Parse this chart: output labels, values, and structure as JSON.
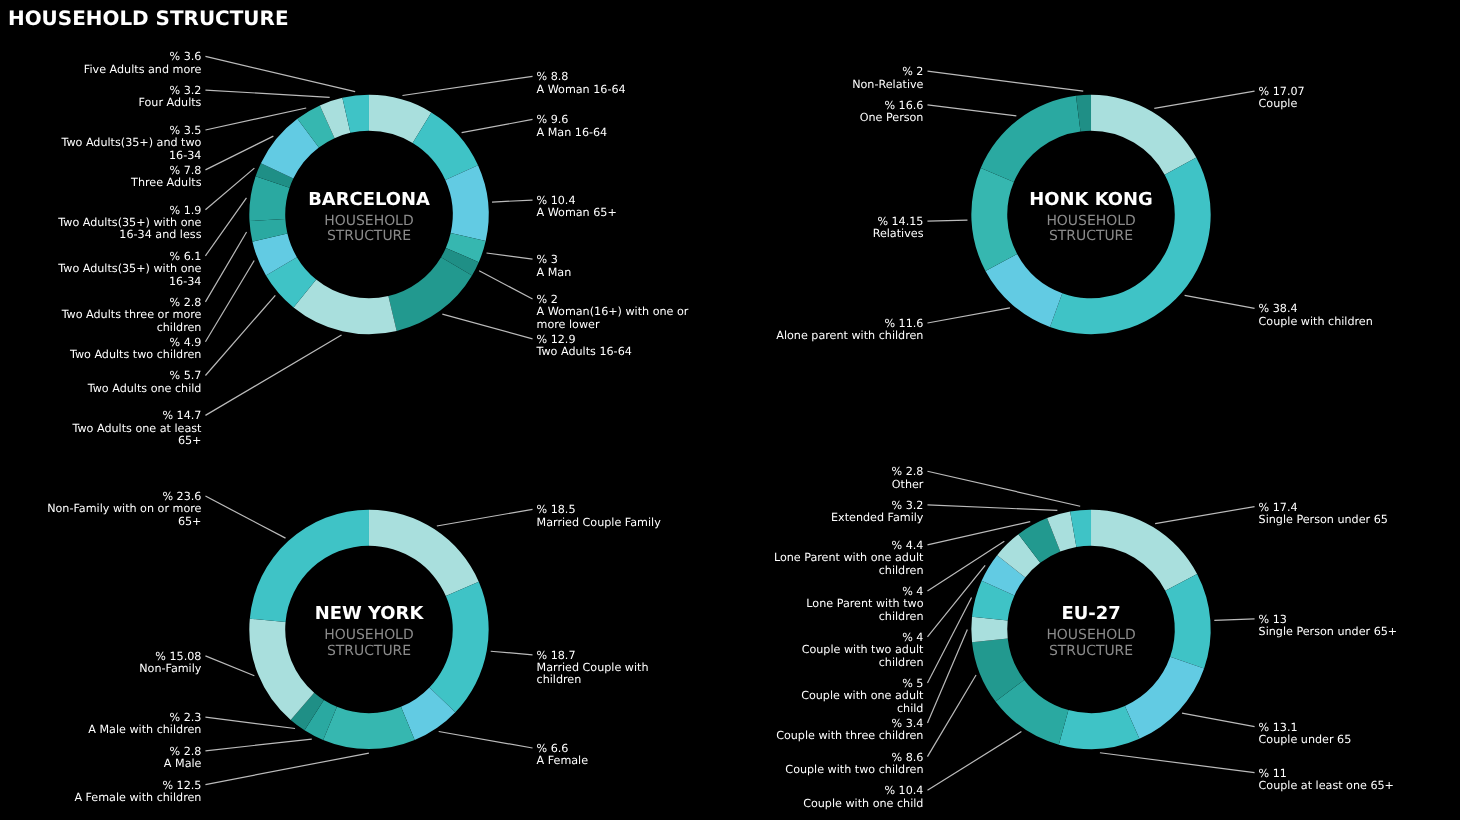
{
  "chart_data": [
    {
      "type": "donut",
      "title": "BARCELONA",
      "subtitle": "HOUSEHOLD STRUCTURE",
      "annotations": [
        "HOUSEHOLD STRUCTURE"
      ],
      "categories": [
        "A Woman 16-64",
        "A Man 16-64",
        "A Woman 65+",
        "A Man",
        "A Woman(16+) with one or more lower",
        "Two Adults 16-64",
        "Two Adults one at least 65+",
        "Two Adults one child",
        "Two Adults two children",
        "Two Adults three or more children",
        "Two Adults(35+) with one 16-34",
        "Two Adults(35+) with one 16-34 and less",
        "Three Adults",
        "Two Adults(35+) and two 16-34",
        "Four Adults",
        "Five Adults and more"
      ],
      "values": [
        8.8,
        9.6,
        10.4,
        3,
        2,
        12.9,
        14.7,
        5.7,
        4.9,
        2.8,
        6.1,
        1.9,
        7.8,
        3.5,
        3.2,
        3.6
      ],
      "value_labels": [
        "% 8.8",
        "% 9.6",
        "% 10.4",
        "% 3",
        "% 2",
        "% 12.9",
        "% 14.7",
        "% 5.7",
        "% 4.9",
        "% 2.8",
        "% 6.1",
        "% 1.9",
        "% 7.8",
        "% 3.5",
        "% 3.2",
        "% 3.6"
      ],
      "colors": [
        "#a9dfdd",
        "#3fc3c6",
        "#62cbe3",
        "#36b7b0",
        "#1f8f86",
        "#22998f",
        "#a9dfdd",
        "#3fc3c6",
        "#62cbe3",
        "#2aa9a1",
        "#2aa9a1",
        "#1f8f86",
        "#62cbe3",
        "#36b7b0",
        "#a9dfdd",
        "#3fc3c6"
      ]
    },
    {
      "type": "donut",
      "title": "HONK KONG",
      "subtitle": "HOUSEHOLD STRUCTURE",
      "categories": [
        "Couple",
        "Couple with children",
        "Alone parent with children",
        "Relatives",
        "One Person",
        "Non-Relative"
      ],
      "values": [
        17.07,
        38.4,
        11.6,
        14.15,
        16.6,
        2
      ],
      "value_labels": [
        "% 17.07",
        "% 38.4",
        "% 11.6",
        "% 14.15",
        "% 16.6",
        "% 2"
      ],
      "colors": [
        "#a9dfdd",
        "#3fc3c6",
        "#62cbe3",
        "#36b7b0",
        "#2aa9a1",
        "#1f8f86"
      ]
    },
    {
      "type": "donut",
      "title": "NEW YORK",
      "subtitle": "HOUSEHOLD STRUCTURE",
      "categories": [
        "Married Couple Family",
        "Married Couple with children",
        "A Female",
        "A Female with children",
        "A Male",
        "A Male with children",
        "Non-Family",
        "Non-Family with on or more 65+"
      ],
      "values": [
        18.5,
        18.7,
        6.6,
        12.5,
        2.8,
        2.3,
        15.08,
        23.6
      ],
      "value_labels": [
        "% 18.5",
        "% 18.7",
        "% 6.6",
        "% 12.5",
        "% 2.8",
        "% 2.3",
        "% 15.08",
        "% 23.6"
      ],
      "colors": [
        "#a9dfdd",
        "#3fc3c6",
        "#62cbe3",
        "#36b7b0",
        "#2aa9a1",
        "#1f8f86",
        "#a9dfdd",
        "#3fc3c6"
      ]
    },
    {
      "type": "donut",
      "title": "EU-27",
      "subtitle": "HOUSEHOLD STRUCTURE",
      "categories": [
        "Single Person under 65",
        "Single Person under 65+",
        "Couple under 65",
        "Couple at least one 65+",
        "Couple with one child",
        "Couple with two children",
        "Couple with three children",
        "Couple with one adult child",
        "Couple with two adult children",
        "Lone Parent with two children",
        "Lone Parent with one adult children",
        "Extended Family",
        "Other"
      ],
      "values": [
        17.4,
        13,
        13.1,
        11,
        10.4,
        8.6,
        3.4,
        5,
        4,
        4,
        4.4,
        3.2,
        2.8
      ],
      "value_labels": [
        "% 17.4",
        "% 13",
        "% 13.1",
        "% 11",
        "% 10.4",
        "% 8.6",
        "% 3.4",
        "% 5",
        "% 4",
        "% 4",
        "% 4.4",
        "% 3.2",
        "% 2.8"
      ],
      "colors": [
        "#a9dfdd",
        "#3fc3c6",
        "#62cbe3",
        "#3fc3c6",
        "#2aa9a1",
        "#22998f",
        "#a9dfdd",
        "#3fc3c6",
        "#62cbe3",
        "#a9dfdd",
        "#22998f",
        "#a9dfdd",
        "#3fc3c6"
      ]
    }
  ]
}
